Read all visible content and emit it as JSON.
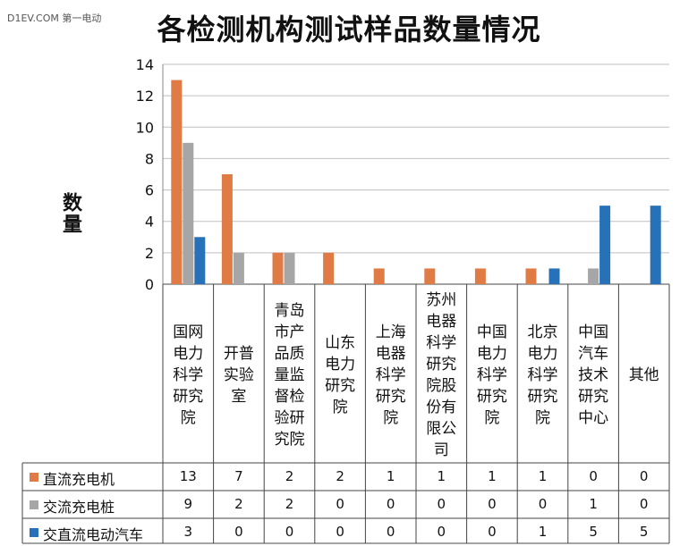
{
  "watermark": "D1EV.COM 第一电动",
  "chart_data": {
    "type": "bar",
    "title": "各检测机构测试样品数量情况",
    "ylabel": "数量",
    "xlabel": "",
    "ylim": [
      0,
      14
    ],
    "yticks": [
      0,
      2,
      4,
      6,
      8,
      10,
      12,
      14
    ],
    "grid": true,
    "legend_placement": "data-table-left",
    "categories": [
      "国网电力科学研究院",
      "开普实验室",
      "青岛市产品质量监督检验研究院",
      "山东电力研究院",
      "上海电器科学研究院",
      "苏州电器科学研究院股份有限公司",
      "中国电力科学研究院",
      "北京电力科学研究院",
      "中国汽车技术研究中心",
      "其他"
    ],
    "series": [
      {
        "name": "直流充电机",
        "color": "#e07b45",
        "values": [
          13,
          7,
          2,
          2,
          1,
          1,
          1,
          1,
          0,
          0
        ]
      },
      {
        "name": "交流充电桩",
        "color": "#a6a6a6",
        "values": [
          9,
          2,
          2,
          0,
          0,
          0,
          0,
          0,
          1,
          0
        ]
      },
      {
        "name": "交直流电动汽车",
        "color": "#2671b8",
        "values": [
          3,
          0,
          0,
          0,
          0,
          0,
          0,
          1,
          5,
          5
        ]
      }
    ]
  }
}
